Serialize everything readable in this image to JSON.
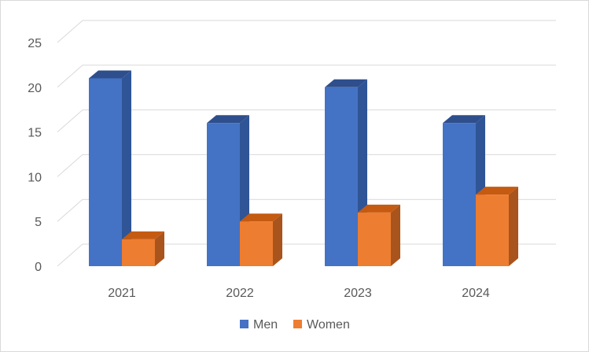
{
  "chart_data": {
    "type": "bar",
    "style": "3d-clustered-column",
    "categories": [
      "2021",
      "2022",
      "2023",
      "2024"
    ],
    "series": [
      {
        "name": "Men",
        "values": [
          21,
          16,
          20,
          16
        ],
        "color": "#4472C4",
        "side_color": "#2F5597",
        "top_color": "#2E4F8C"
      },
      {
        "name": "Women",
        "values": [
          3,
          5,
          6,
          8
        ],
        "color": "#ED7D31",
        "side_color": "#A9541C",
        "top_color": "#C55A11"
      }
    ],
    "yticks": [
      "0",
      "5",
      "10",
      "15",
      "20",
      "25"
    ],
    "ylim": [
      0,
      25
    ],
    "grid": true,
    "legend": "bottom",
    "title": "",
    "xlabel": "",
    "ylabel": ""
  }
}
